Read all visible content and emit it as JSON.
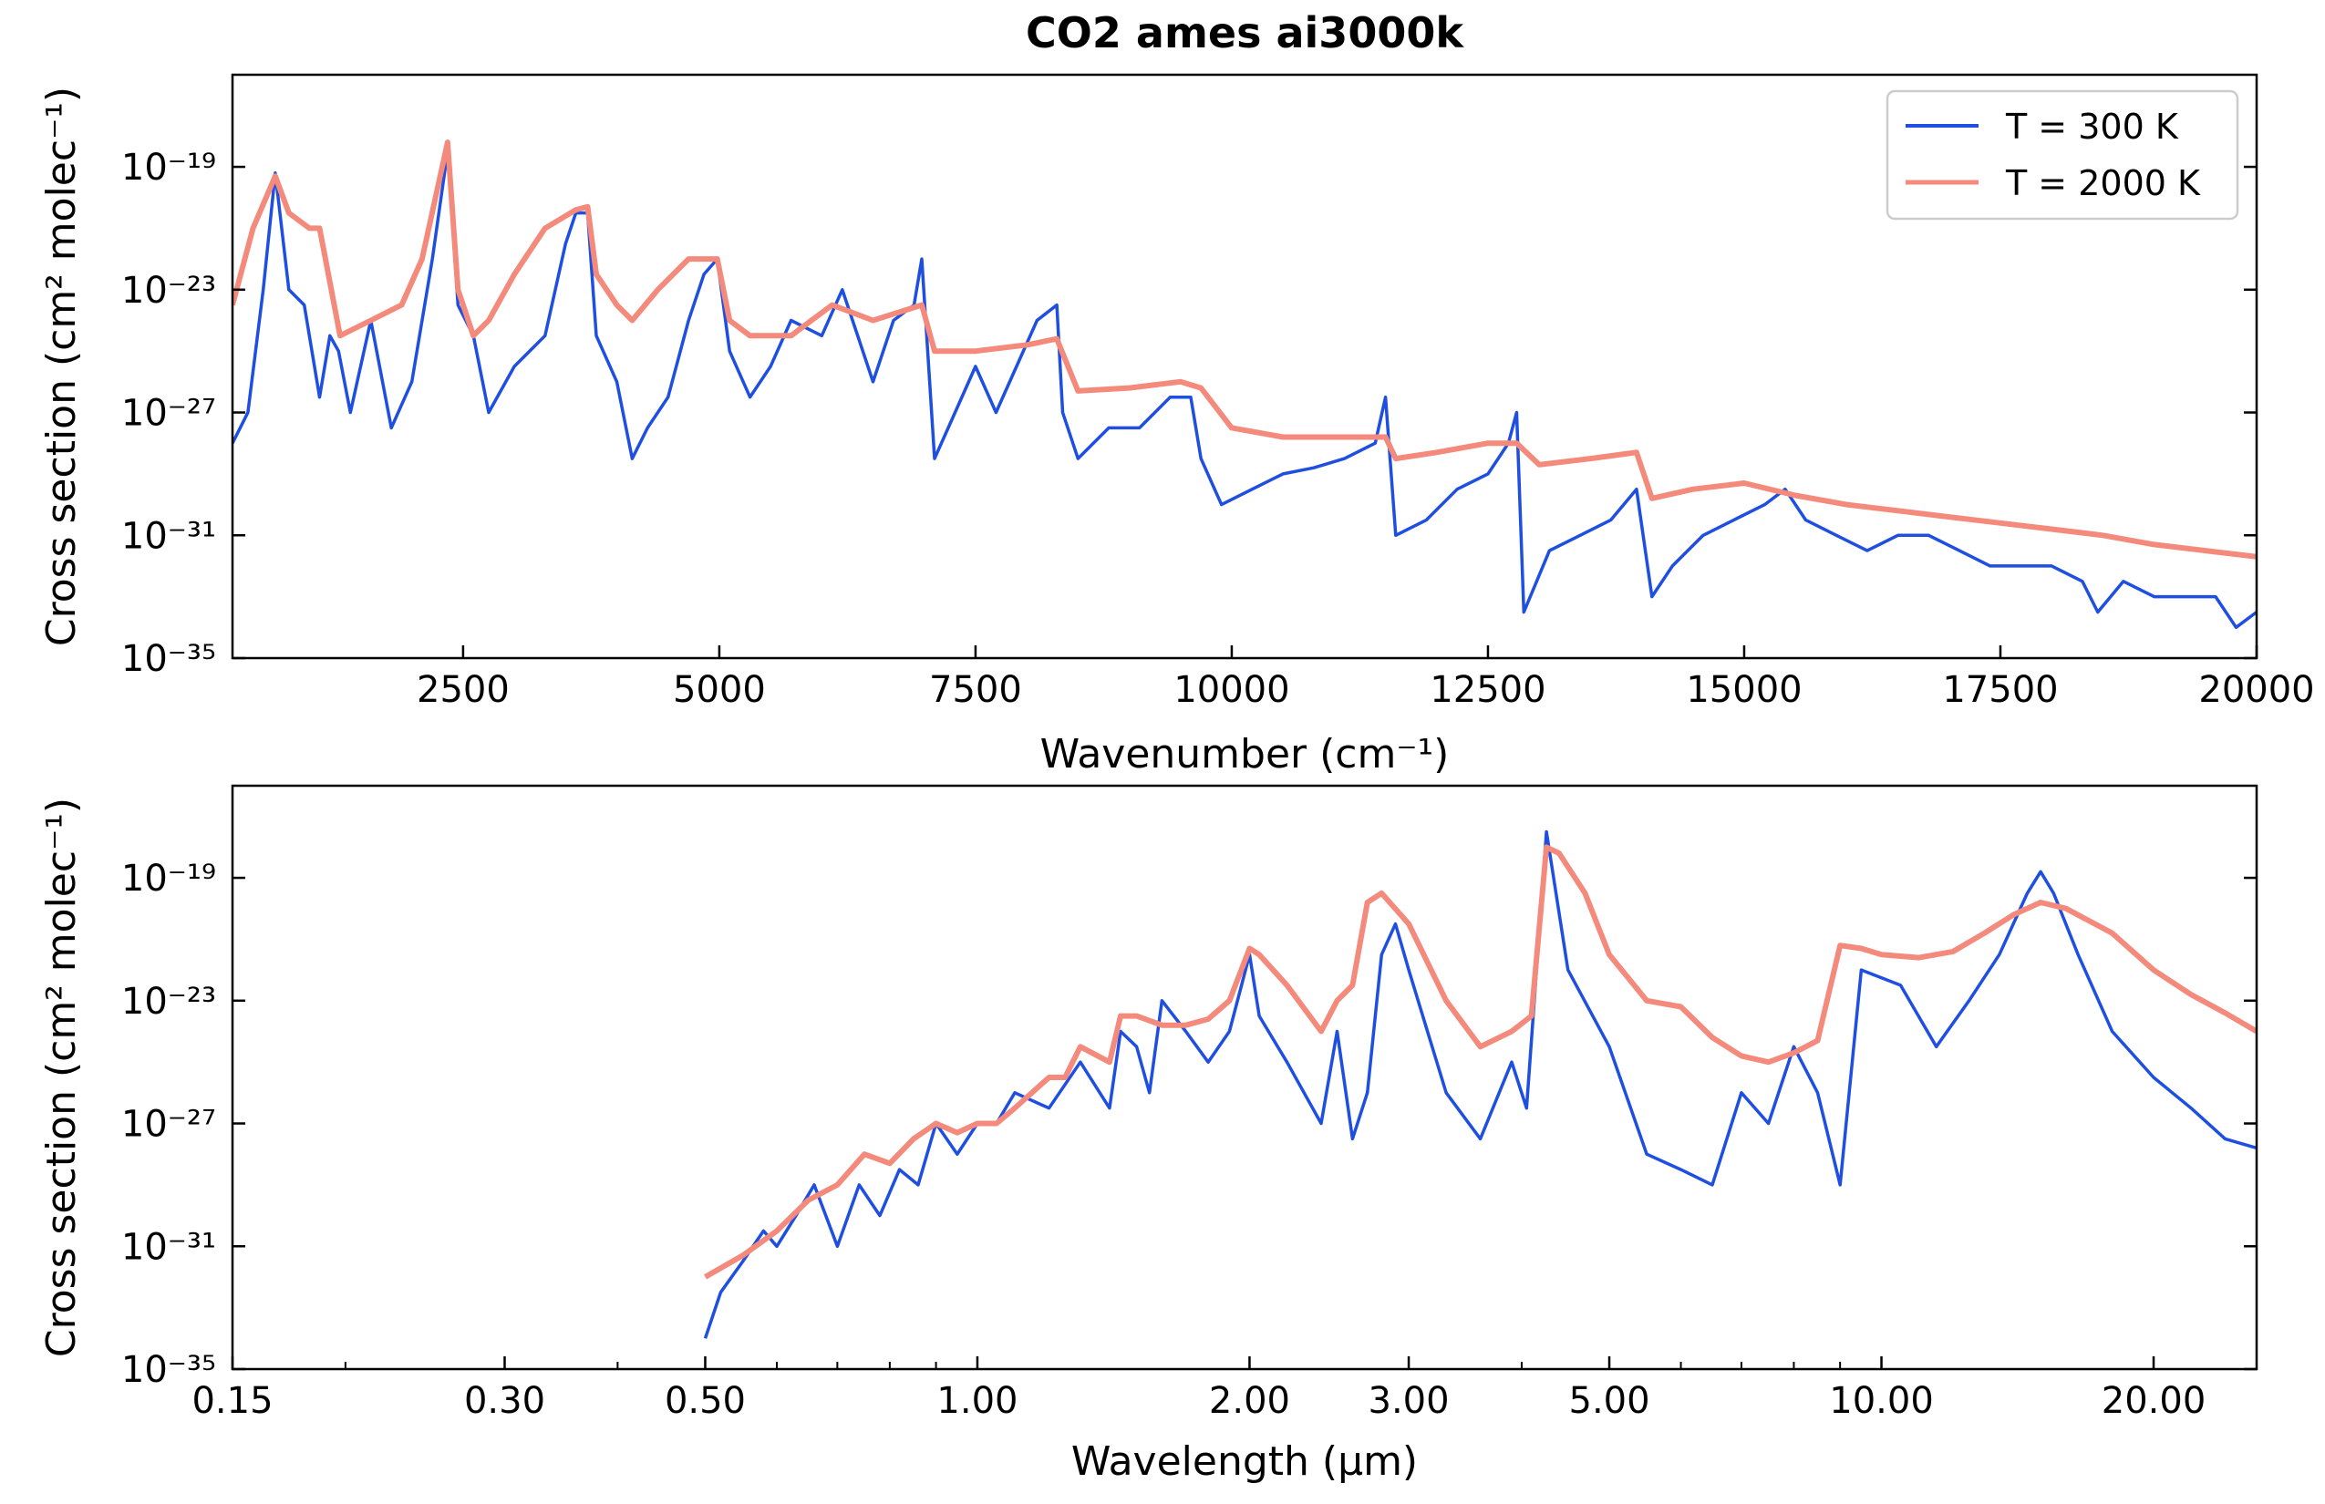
{
  "figure_title": "CO2 ames ai3000k",
  "legend": {
    "entries": [
      {
        "label": "T = 300 K",
        "color": "#1f4fe0"
      },
      {
        "label": "T = 2000 K",
        "color": "#f48a7c"
      }
    ]
  },
  "chart_data": [
    {
      "type": "line",
      "title": "CO2 ames ai3000k",
      "xlabel": "Wavenumber (cm⁻¹)",
      "ylabel": "Cross section (cm² molec⁻¹)",
      "xscale": "linear",
      "yscale": "log",
      "xlim": [
        250,
        20000
      ],
      "ylim": [
        1e-35,
        1e-16
      ],
      "xticks": [
        2500,
        5000,
        7500,
        10000,
        12500,
        15000,
        17500,
        20000
      ],
      "xtick_labels": [
        "2500",
        "5000",
        "7500",
        "10000",
        "12500",
        "15000",
        "17500",
        "20000"
      ],
      "yticks": [
        -35,
        -31,
        -27,
        -23,
        -19
      ],
      "legend_position": "top-right",
      "grid": false,
      "series": [
        {
          "name": "T = 300 K",
          "color": "#1f4fe0",
          "x": [
            250,
            400,
            550,
            667,
            800,
            950,
            1100,
            1200,
            1285,
            1400,
            1600,
            1800,
            2000,
            2200,
            2349,
            2450,
            2600,
            2750,
            3000,
            3300,
            3500,
            3600,
            3715,
            3800,
            4000,
            4150,
            4300,
            4500,
            4700,
            4850,
            4980,
            5100,
            5300,
            5500,
            5700,
            6000,
            6200,
            6350,
            6500,
            6700,
            6900,
            6976,
            7100,
            7300,
            7500,
            7700,
            7900,
            8100,
            8293,
            8350,
            8500,
            8800,
            9100,
            9400,
            9600,
            9700,
            9900,
            10200,
            10500,
            10800,
            11100,
            11400,
            11500,
            11600,
            11900,
            12200,
            12500,
            12700,
            12780,
            12850,
            13100,
            13400,
            13700,
            13950,
            14100,
            14300,
            14600,
            14900,
            15200,
            15400,
            15600,
            15900,
            16200,
            16500,
            16800,
            17100,
            17400,
            17700,
            18000,
            18300,
            18450,
            18700,
            19000,
            19300,
            19600,
            19800,
            20000
          ],
          "y": [
            -28,
            -27,
            -23,
            -19.2,
            -23,
            -23.5,
            -26.5,
            -24.5,
            -25,
            -27,
            -24,
            -27.5,
            -26,
            -22,
            -18.5,
            -23.5,
            -24.5,
            -27,
            -25.5,
            -24.5,
            -21.5,
            -20.5,
            -20.5,
            -24.5,
            -26,
            -28.5,
            -27.5,
            -26.5,
            -24,
            -22.5,
            -22,
            -25,
            -26.5,
            -25.5,
            -24,
            -24.5,
            -23,
            -24.5,
            -26,
            -24,
            -23.5,
            -22,
            -28.5,
            -27,
            -25.5,
            -27,
            -25.5,
            -24,
            -23.5,
            -27,
            -28.5,
            -27.5,
            -27.5,
            -26.5,
            -26.5,
            -28.5,
            -30,
            -29.5,
            -29,
            -28.8,
            -28.5,
            -28,
            -26.5,
            -31,
            -30.5,
            -29.5,
            -29,
            -28,
            -27,
            -33.5,
            -31.5,
            -31,
            -30.5,
            -29.5,
            -33,
            -32,
            -31,
            -30.5,
            -30,
            -29.5,
            -30.5,
            -31,
            -31.5,
            -31,
            -31,
            -31.5,
            -32,
            -32,
            -32,
            -32.5,
            -33.5,
            -32.5,
            -33,
            -33,
            -33,
            -34,
            -33.5
          ]
        },
        {
          "name": "T = 2000 K",
          "color": "#f48a7c",
          "x": [
            250,
            450,
            667,
            800,
            1000,
            1100,
            1300,
            1600,
            1900,
            2100,
            2349,
            2450,
            2600,
            2750,
            3000,
            3300,
            3600,
            3715,
            3800,
            4000,
            4150,
            4400,
            4700,
            4980,
            5100,
            5300,
            5700,
            6100,
            6500,
            6976,
            7100,
            7500,
            8000,
            8293,
            8500,
            9000,
            9500,
            9700,
            10000,
            10500,
            11000,
            11500,
            11600,
            12000,
            12500,
            12780,
            13000,
            13500,
            13950,
            14100,
            14500,
            15000,
            15500,
            16000,
            16500,
            17000,
            17500,
            18000,
            18500,
            19000,
            19500,
            20000
          ],
          "y": [
            -23.5,
            -21,
            -19.3,
            -20.5,
            -21,
            -21,
            -24.5,
            -24,
            -23.5,
            -22,
            -18.2,
            -23,
            -24.5,
            -24,
            -22.5,
            -21,
            -20.4,
            -20.3,
            -22.5,
            -23.5,
            -24,
            -23,
            -22,
            -22,
            -24,
            -24.5,
            -24.5,
            -23.5,
            -24,
            -23.5,
            -25,
            -25,
            -24.8,
            -24.6,
            -26.3,
            -26.2,
            -26,
            -26.2,
            -27.5,
            -27.8,
            -27.8,
            -27.8,
            -28.5,
            -28.3,
            -28,
            -28,
            -28.7,
            -28.5,
            -28.3,
            -29.8,
            -29.5,
            -29.3,
            -29.7,
            -30,
            -30.2,
            -30.4,
            -30.6,
            -30.8,
            -31,
            -31.3,
            -31.5,
            -31.7
          ]
        }
      ]
    },
    {
      "type": "line",
      "title": "",
      "xlabel": "Wavelength (μm)",
      "ylabel": "Cross section (cm² molec⁻¹)",
      "xscale": "log",
      "yscale": "log",
      "xlim": [
        0.15,
        26
      ],
      "ylim": [
        1e-35,
        1e-16
      ],
      "xticks": [
        0.15,
        0.3,
        0.5,
        1.0,
        2.0,
        3.0,
        5.0,
        10.0,
        20.0
      ],
      "xtick_labels": [
        "0.15",
        "0.30",
        "0.50",
        "1.00",
        "2.00",
        "3.00",
        "5.00",
        "10.00",
        "20.00"
      ],
      "yticks": [
        -35,
        -31,
        -27,
        -23,
        -19
      ],
      "grid": false,
      "series": [
        {
          "name": "T = 300 K",
          "color": "#1f4fe0",
          "x": [
            0.5,
            0.52,
            0.55,
            0.58,
            0.6,
            0.63,
            0.66,
            0.7,
            0.74,
            0.78,
            0.82,
            0.86,
            0.9,
            0.95,
            1.0,
            1.05,
            1.1,
            1.2,
            1.3,
            1.4,
            1.44,
            1.5,
            1.55,
            1.6,
            1.7,
            1.8,
            1.9,
            2.0,
            2.05,
            2.2,
            2.4,
            2.5,
            2.6,
            2.7,
            2.8,
            2.9,
            3.0,
            3.3,
            3.6,
            3.9,
            4.05,
            4.26,
            4.5,
            5.0,
            5.5,
            6.0,
            6.5,
            7.0,
            7.5,
            8.0,
            8.5,
            9.0,
            9.5,
            10.5,
            11.5,
            12.5,
            13.5,
            14.5,
            15.0,
            15.5,
            16.5,
            18,
            20,
            22,
            24,
            26
          ],
          "y": [
            -34,
            -32.5,
            -31.5,
            -30.5,
            -31,
            -30,
            -29,
            -31,
            -29,
            -30,
            -28.5,
            -29,
            -27,
            -28,
            -27,
            -27,
            -26,
            -26.5,
            -25,
            -26.5,
            -24,
            -24.5,
            -26,
            -23,
            -24,
            -25,
            -24,
            -21.5,
            -23.5,
            -25,
            -27,
            -24,
            -27.5,
            -26,
            -21.5,
            -20.5,
            -22,
            -26,
            -27.5,
            -25,
            -26.5,
            -17.5,
            -22,
            -24.5,
            -28,
            -28.5,
            -29,
            -26,
            -27,
            -24.5,
            -26,
            -29,
            -22,
            -22.5,
            -24.5,
            -23,
            -21.5,
            -19.5,
            -18.8,
            -19.5,
            -21.5,
            -24,
            -25.5,
            -26.5,
            -27.5,
            -27.8
          ]
        },
        {
          "name": "T = 2000 K",
          "color": "#f48a7c",
          "x": [
            0.5,
            0.55,
            0.6,
            0.65,
            0.7,
            0.75,
            0.8,
            0.85,
            0.9,
            0.95,
            1.0,
            1.05,
            1.1,
            1.2,
            1.25,
            1.3,
            1.4,
            1.44,
            1.5,
            1.6,
            1.7,
            1.8,
            1.9,
            2.0,
            2.05,
            2.2,
            2.4,
            2.5,
            2.6,
            2.7,
            2.8,
            3.0,
            3.3,
            3.6,
            3.9,
            4.1,
            4.26,
            4.4,
            4.7,
            5.0,
            5.5,
            6.0,
            6.5,
            7.0,
            7.5,
            8.0,
            8.5,
            9.0,
            9.5,
            10.0,
            11.0,
            12.0,
            13.0,
            14.0,
            15.0,
            16.0,
            18.0,
            20.0,
            22.0,
            24.0,
            26.0
          ],
          "y": [
            -32,
            -31.3,
            -30.5,
            -29.5,
            -29,
            -28,
            -28.3,
            -27.5,
            -27,
            -27.3,
            -27,
            -27,
            -26.5,
            -25.5,
            -25.5,
            -24.5,
            -25,
            -23.5,
            -23.5,
            -23.8,
            -23.8,
            -23.6,
            -23,
            -21.3,
            -21.5,
            -22.5,
            -24,
            -23,
            -22.5,
            -19.8,
            -19.5,
            -20.5,
            -23,
            -24.5,
            -24,
            -23.5,
            -18,
            -18.2,
            -19.5,
            -21.5,
            -23,
            -23.2,
            -24.2,
            -24.8,
            -25,
            -24.7,
            -24.3,
            -21.2,
            -21.3,
            -21.5,
            -21.6,
            -21.4,
            -20.8,
            -20.2,
            -19.8,
            -20,
            -20.8,
            -22,
            -22.8,
            -23.4,
            -24
          ]
        }
      ]
    }
  ]
}
